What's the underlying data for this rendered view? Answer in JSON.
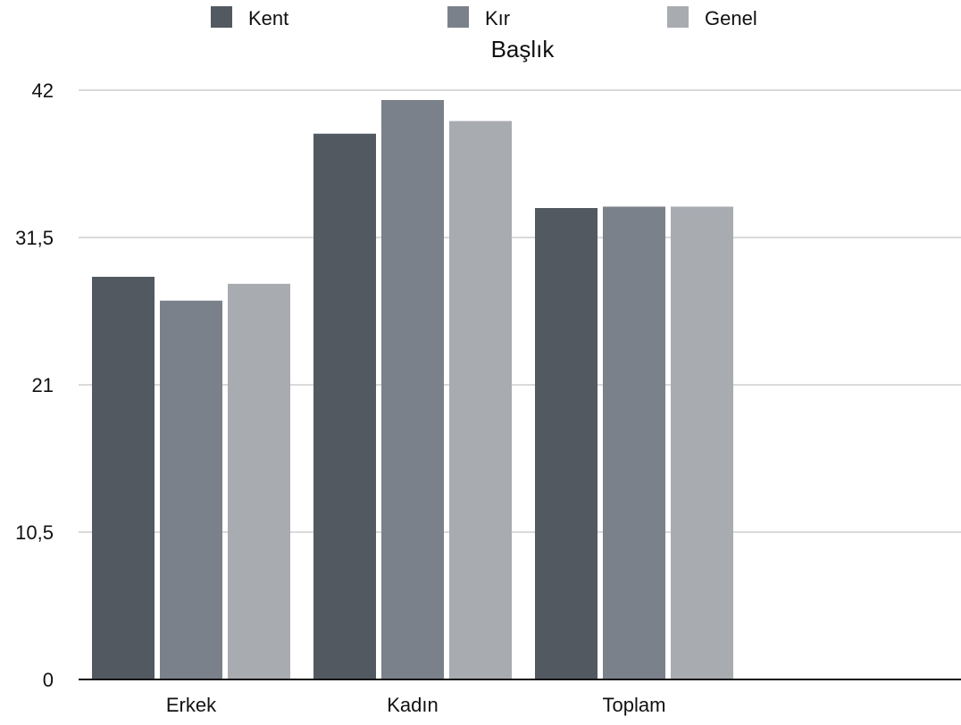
{
  "chart_data": {
    "type": "bar",
    "title": "Başlık",
    "categories": [
      "Erkek",
      "Kadın",
      "Toplam"
    ],
    "series": [
      {
        "name": "Kent",
        "color": "#525961",
        "values": [
          28.7,
          38.9,
          33.6
        ]
      },
      {
        "name": "Kır",
        "color": "#7b818a",
        "values": [
          27.0,
          41.3,
          33.7
        ]
      },
      {
        "name": "Genel",
        "color": "#a8abb0",
        "values": [
          28.2,
          39.8,
          33.7
        ]
      }
    ],
    "ylim": [
      0,
      42
    ],
    "yticks": [
      "0",
      "10,5",
      "21",
      "31,5",
      "42"
    ],
    "ytick_values": [
      0,
      10.5,
      21,
      31.5,
      42
    ],
    "grid": true,
    "legend_position": "top"
  }
}
